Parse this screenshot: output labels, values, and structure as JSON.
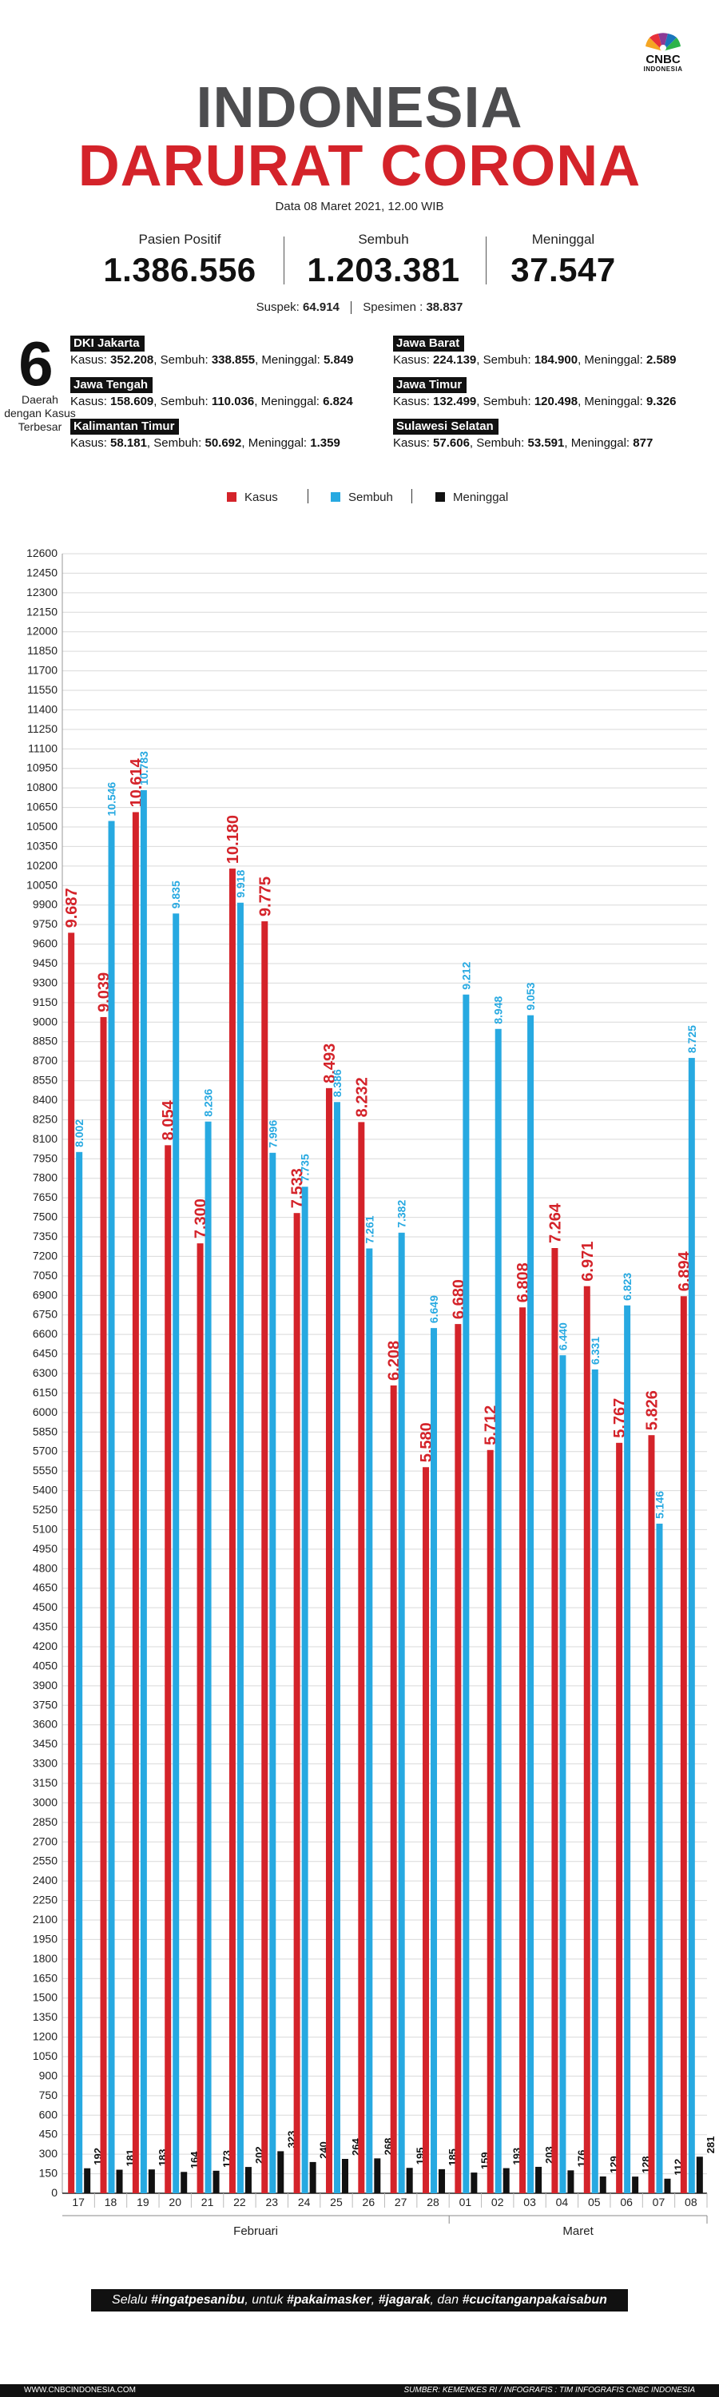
{
  "brand": {
    "logo_text": "CNBC",
    "logo_sub": "INDONESIA",
    "logo_icon": "peacock-icon"
  },
  "header": {
    "title_line1": "INDONESIA",
    "title_line2": "DARURAT CORONA",
    "date": "Data 08 Maret 2021, 12.00 WIB"
  },
  "stats": [
    {
      "label": "Pasien Positif",
      "value": "1.386.556"
    },
    {
      "label": "Sembuh",
      "value": "1.203.381"
    },
    {
      "label": "Meninggal",
      "value": "37.547"
    }
  ],
  "suspek": {
    "label": "Suspek:",
    "value": "64.914",
    "label2": "Spesimen :",
    "value2": "38.837"
  },
  "regions_intro": {
    "number": "6",
    "caption": "Daerah dengan Kasus Terbesar"
  },
  "regions": [
    {
      "name": "DKI Jakarta",
      "kasus": "352.208",
      "sembuh": "338.855",
      "meninggal": "5.849"
    },
    {
      "name": "Jawa Barat",
      "kasus": "224.139",
      "sembuh": "184.900",
      "meninggal": "2.589"
    },
    {
      "name": "Jawa Tengah",
      "kasus": "158.609",
      "sembuh": "110.036",
      "meninggal": "6.824"
    },
    {
      "name": "Jawa Timur",
      "kasus": "132.499",
      "sembuh": "120.498",
      "meninggal": "9.326"
    },
    {
      "name": "Kalimantan Timur",
      "kasus": "58.181",
      "sembuh": "50.692",
      "meninggal": "1.359"
    },
    {
      "name": "Sulawesi Selatan",
      "kasus": "57.606",
      "sembuh": "53.591",
      "meninggal": "877"
    }
  ],
  "region_labels": {
    "kasus": "Kasus:",
    "sembuh": "Sembuh:",
    "meninggal": "Meninggal:"
  },
  "legend": [
    {
      "name": "Kasus",
      "color": "#d4232a"
    },
    {
      "name": "Sembuh",
      "color": "#27a9e1"
    },
    {
      "name": "Meninggal",
      "color": "#111111"
    }
  ],
  "chart_data": {
    "type": "bar",
    "categories": [
      "17",
      "18",
      "19",
      "20",
      "21",
      "22",
      "23",
      "24",
      "25",
      "26",
      "27",
      "28",
      "01",
      "02",
      "03",
      "04",
      "05",
      "06",
      "07",
      "08"
    ],
    "month_labels": [
      {
        "label": "Februari",
        "from": 0,
        "to": 11
      },
      {
        "label": "Maret",
        "from": 12,
        "to": 19
      }
    ],
    "series": [
      {
        "name": "Kasus",
        "color": "#d4232a",
        "values": [
          9687,
          9039,
          10614,
          8054,
          7300,
          10180,
          9775,
          7533,
          8493,
          8232,
          6208,
          5580,
          6680,
          5712,
          6808,
          7264,
          6971,
          5767,
          5826,
          6894
        ],
        "labels": [
          "9.687",
          "9.039",
          "10.614",
          "8.054",
          "7.300",
          "10.180",
          "9.775",
          "7.533",
          "8.493",
          "8.232",
          "6.208",
          "5.580",
          "6.680",
          "5.712",
          "6.808",
          "7.264",
          "6.971",
          "5.767",
          "5.826",
          "6.894"
        ]
      },
      {
        "name": "Sembuh",
        "color": "#27a9e1",
        "values": [
          8002,
          10546,
          10783,
          9835,
          8236,
          9918,
          7996,
          7735,
          8386,
          7261,
          7382,
          6649,
          9212,
          8948,
          9053,
          6440,
          6331,
          6823,
          5146,
          8725
        ],
        "labels": [
          "8.002",
          "10.546",
          "10.783",
          "9.835",
          "8.236",
          "9.918",
          "7.996",
          "7.735",
          "8.386",
          "7.261",
          "7.382",
          "6.649",
          "9.212",
          "8.948",
          "9.053",
          "6.440",
          "6.331",
          "6.823",
          "5.146",
          "8.725"
        ]
      },
      {
        "name": "Meninggal",
        "color": "#111111",
        "values": [
          192,
          181,
          183,
          164,
          173,
          202,
          323,
          240,
          264,
          268,
          195,
          185,
          159,
          193,
          203,
          176,
          129,
          128,
          112,
          281
        ],
        "labels": [
          "192",
          "181",
          "183",
          "164",
          "173",
          "202",
          "323",
          "240",
          "264",
          "268",
          "195",
          "185",
          "159",
          "193",
          "203",
          "176",
          "129",
          "128",
          "112",
          "281"
        ]
      }
    ],
    "ylim": [
      0,
      12600
    ],
    "ytick_step": 150,
    "grid": true
  },
  "footer": {
    "banner_pre": "Selalu",
    "banner_tag1": "#ingatpesanibu",
    "banner_mid1": ", untuk",
    "banner_tag2": "#pakaimasker",
    "banner_mid2": ",",
    "banner_tag3": "#jagarak",
    "banner_mid3": ", dan",
    "banner_tag4": "#cucitanganpakaisabun",
    "website": "WWW.CNBCINDONESIA.COM",
    "source": "SUMBER: KEMENKES RI / INFOGRAFIS : TIM INFOGRAFIS CNBC INDONESIA"
  }
}
